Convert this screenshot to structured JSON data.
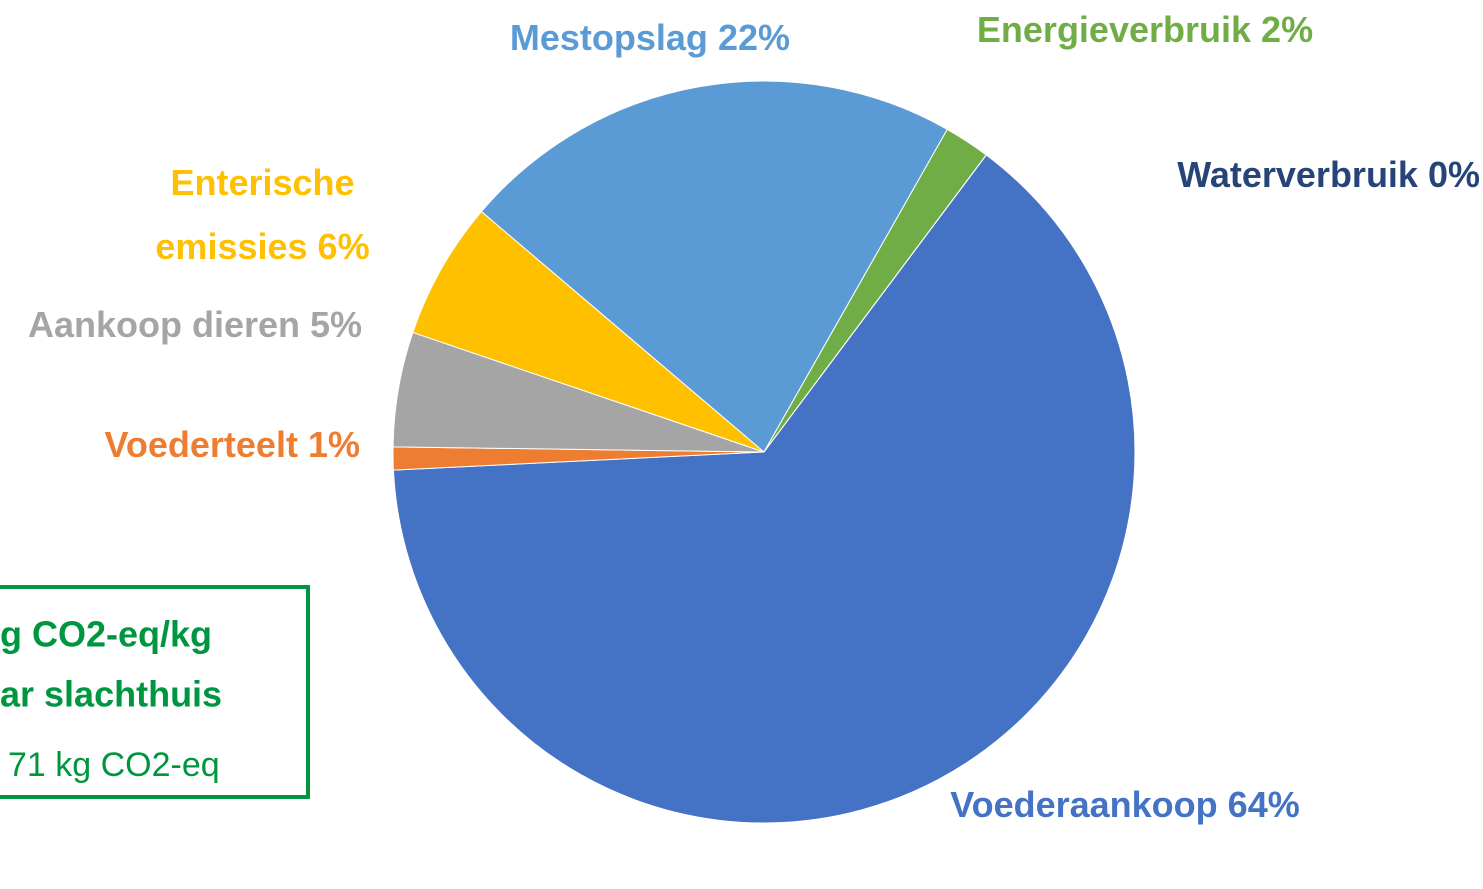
{
  "chart_data": {
    "type": "pie",
    "categories": [
      "Voederaankoop",
      "Voederteelt",
      "Aankoop dieren",
      "Enterische emissies",
      "Mestopslag",
      "Energieverbruik",
      "Waterverbruik"
    ],
    "values": [
      64,
      1,
      5,
      6,
      22,
      2,
      0
    ],
    "value_labels": [
      "64%",
      "1%",
      "5%",
      "6%",
      "22%",
      "2%",
      "0%"
    ],
    "colors": [
      "#4472C4",
      "#ED7D31",
      "#A5A5A5",
      "#FFC000",
      "#5B9BD5",
      "#70AD47",
      "#264478"
    ]
  },
  "note_box": {
    "lines": [
      "g CO2-eq/kg",
      "ar slachthuis",
      "71 kg CO2-eq"
    ]
  }
}
